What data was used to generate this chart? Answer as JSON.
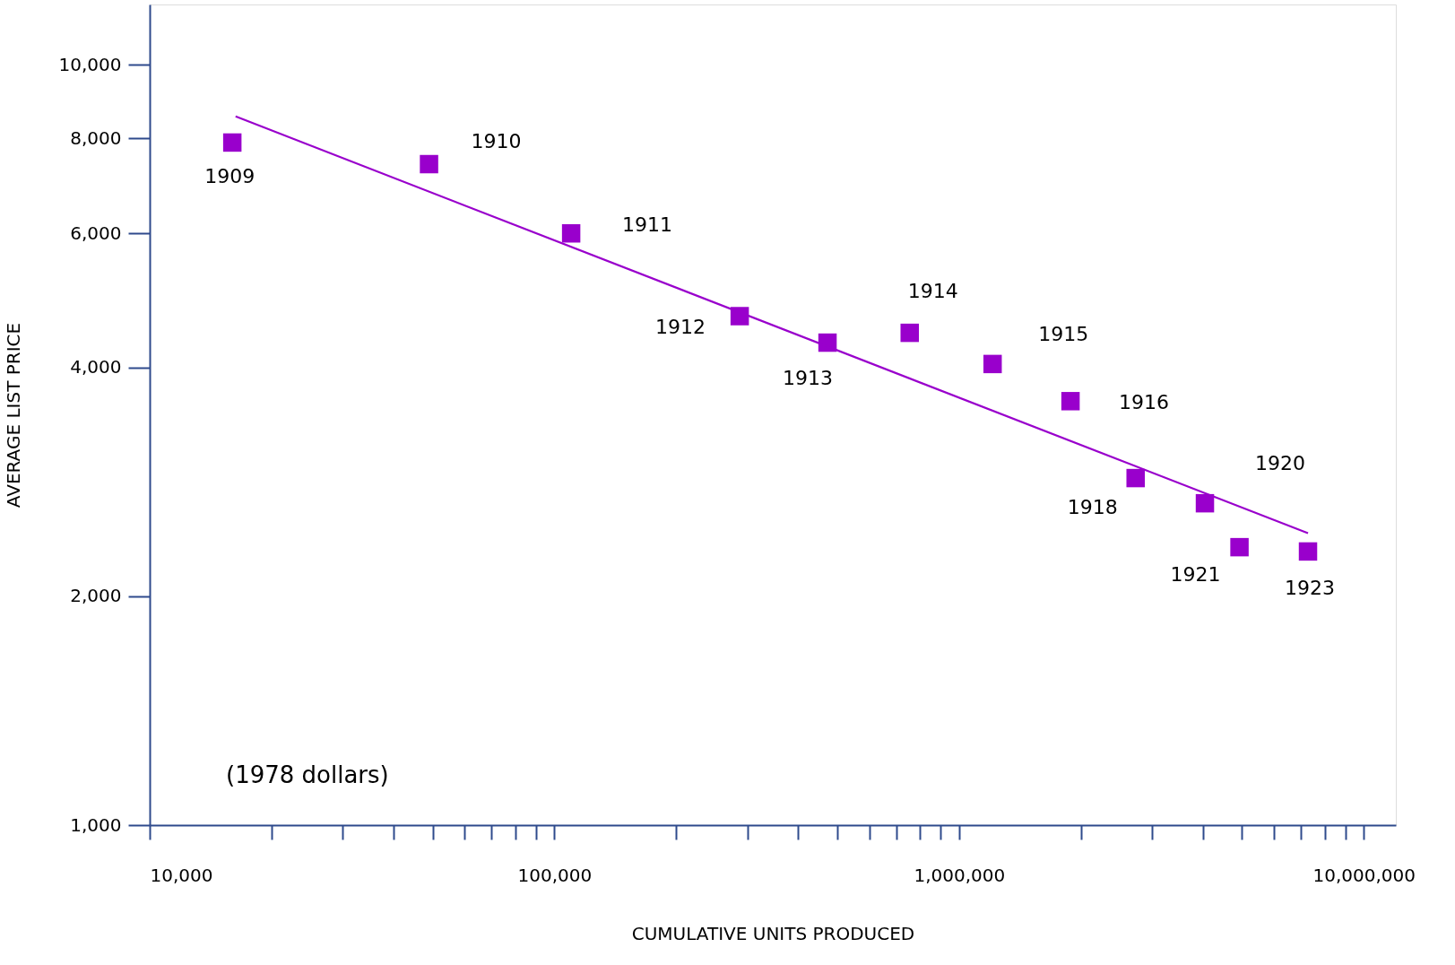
{
  "chart_data": {
    "type": "scatter",
    "xlabel": "CUMULATIVE UNITS PRODUCED",
    "ylabel": "AVERAGE LIST PRICE",
    "log": "xy",
    "grid": false,
    "xlim": [
      10000,
      12000000
    ],
    "ylim": [
      1000,
      12000
    ],
    "xticks": [
      {
        "value": 10000,
        "label": "10,000"
      },
      {
        "value": 20000,
        "label": null
      },
      {
        "value": 30000,
        "label": null
      },
      {
        "value": 40000,
        "label": null
      },
      {
        "value": 50000,
        "label": null
      },
      {
        "value": 60000,
        "label": null
      },
      {
        "value": 70000,
        "label": null
      },
      {
        "value": 80000,
        "label": null
      },
      {
        "value": 90000,
        "label": null
      },
      {
        "value": 100000,
        "label": "100,000"
      },
      {
        "value": 200000,
        "label": null
      },
      {
        "value": 300000,
        "label": null
      },
      {
        "value": 400000,
        "label": null
      },
      {
        "value": 500000,
        "label": null
      },
      {
        "value": 600000,
        "label": null
      },
      {
        "value": 700000,
        "label": null
      },
      {
        "value": 800000,
        "label": null
      },
      {
        "value": 900000,
        "label": null
      },
      {
        "value": 1000000,
        "label": "1,000,000"
      },
      {
        "value": 2000000,
        "label": null
      },
      {
        "value": 3000000,
        "label": null
      },
      {
        "value": 4000000,
        "label": null
      },
      {
        "value": 5000000,
        "label": null
      },
      {
        "value": 6000000,
        "label": null
      },
      {
        "value": 7000000,
        "label": null
      },
      {
        "value": 8000000,
        "label": null
      },
      {
        "value": 9000000,
        "label": null
      },
      {
        "value": 10000000,
        "label": "10,000,000"
      }
    ],
    "yticks": [
      {
        "value": 1000,
        "label": "1,000"
      },
      {
        "value": 2000,
        "label": "2,000"
      },
      {
        "value": 4000,
        "label": "4,000"
      },
      {
        "value": 6000,
        "label": "6,000"
      },
      {
        "value": 8000,
        "label": "8,000"
      },
      {
        "value": 10000,
        "label": "10,000"
      }
    ],
    "series": [
      {
        "marker": "square",
        "color": "#9900cc",
        "x": [
          16000,
          49000,
          110000,
          287000,
          473000,
          755000,
          1210000,
          1885000,
          2730000,
          4050000,
          4930000,
          7280000
        ],
        "values": [
          7900,
          7400,
          6000,
          4670,
          4310,
          4440,
          4040,
          3610,
          2860,
          2650,
          2320,
          2290
        ]
      },
      {
        "type": "line",
        "line_style": "solid",
        "color": "#9900cc",
        "x": [
          16300,
          7280000
        ],
        "values": [
          8550,
          2420
        ]
      }
    ],
    "annotations": [
      {
        "text": "1909",
        "x": 16000,
        "y": 7900
      },
      {
        "text": "1910",
        "x": 49000,
        "y": 7400
      },
      {
        "text": "1911",
        "x": 110000,
        "y": 6000
      },
      {
        "text": "1912",
        "x": 287000,
        "y": 4670
      },
      {
        "text": "1913",
        "x": 473000,
        "y": 4310
      },
      {
        "text": "1914",
        "x": 755000,
        "y": 4440
      },
      {
        "text": "1915",
        "x": 1210000,
        "y": 4040
      },
      {
        "text": "1916",
        "x": 1885000,
        "y": 3610
      },
      {
        "text": "1918",
        "x": 2730000,
        "y": 2860
      },
      {
        "text": "1920",
        "x": 4050000,
        "y": 2650
      },
      {
        "text": "1921",
        "x": 4930000,
        "y": 2320
      },
      {
        "text": "1923",
        "x": 7280000,
        "y": 2290
      },
      "(1978 dollars)"
    ]
  }
}
